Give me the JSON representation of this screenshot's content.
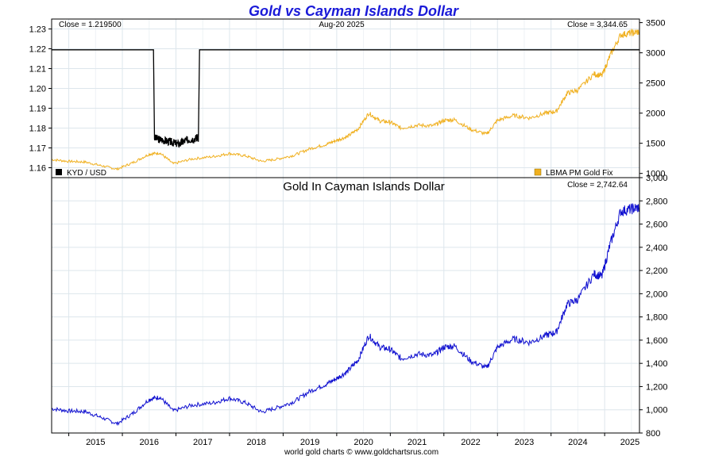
{
  "header": {
    "title": "Gold vs Cayman Islands Dollar",
    "date": "Aug-20  2025",
    "footer": "world gold charts © www.goldchartsrus.com"
  },
  "colors": {
    "title": "#1a1ad8",
    "gold": "#f0b020",
    "kyd": "#000000",
    "lower_series": "#1010d0",
    "grid": "#dde6ec"
  },
  "chart_data": [
    {
      "type": "line",
      "panel": "upper",
      "title": "Gold vs Cayman Islands Dollar",
      "x_ticks": [
        "2015",
        "2016",
        "2017",
        "2018",
        "2019",
        "2020",
        "2021",
        "2022",
        "2023",
        "2024",
        "2025"
      ],
      "xlim": [
        2014.68,
        2025.65
      ],
      "left_axis": {
        "ylim": [
          1.155,
          1.235
        ],
        "ticks": [
          "1.16",
          "1.17",
          "1.18",
          "1.19",
          "1.20",
          "1.21",
          "1.22",
          "1.23"
        ]
      },
      "right_axis": {
        "ylim": [
          930,
          3560
        ],
        "ticks": [
          "1000",
          "1500",
          "2000",
          "2500",
          "3000",
          "3500"
        ]
      },
      "grid": true,
      "close_left": "Close = 1.219500",
      "close_right": "Close = 3,344.65",
      "series": [
        {
          "name": "KYD / USD",
          "axis": "left",
          "color": "#000000",
          "x": [
            2014.68,
            2016.58,
            2016.6,
            2016.75,
            2016.9,
            2017.05,
            2017.2,
            2017.38,
            2017.42,
            2017.44,
            2025.65
          ],
          "y": [
            1.2195,
            1.2195,
            1.175,
            1.174,
            1.173,
            1.172,
            1.174,
            1.175,
            1.175,
            1.2195,
            1.2195
          ]
        },
        {
          "name": "LBMA PM Gold Fix",
          "axis": "right",
          "color": "#f0b020",
          "x": [
            2014.68,
            2015.0,
            2015.3,
            2015.6,
            2015.9,
            2016.2,
            2016.5,
            2016.7,
            2016.95,
            2017.3,
            2017.7,
            2018.0,
            2018.3,
            2018.6,
            2018.9,
            2019.2,
            2019.5,
            2019.8,
            2020.0,
            2020.2,
            2020.4,
            2020.6,
            2020.8,
            2021.0,
            2021.2,
            2021.5,
            2021.8,
            2022.0,
            2022.2,
            2022.5,
            2022.8,
            2023.0,
            2023.3,
            2023.6,
            2023.9,
            2024.1,
            2024.3,
            2024.5,
            2024.8,
            2024.95,
            2025.1,
            2025.3,
            2025.5,
            2025.65
          ],
          "y": [
            1230,
            1200,
            1190,
            1130,
            1070,
            1180,
            1320,
            1340,
            1160,
            1240,
            1280,
            1330,
            1290,
            1200,
            1240,
            1300,
            1410,
            1480,
            1550,
            1610,
            1740,
            2000,
            1870,
            1850,
            1750,
            1800,
            1790,
            1880,
            1890,
            1730,
            1650,
            1880,
            1960,
            1920,
            2000,
            2030,
            2330,
            2380,
            2650,
            2620,
            2950,
            3300,
            3330,
            3345
          ]
        }
      ],
      "legend": [
        {
          "label": "KYD / USD",
          "color": "#000000",
          "position": "bottom-left"
        },
        {
          "label": "LBMA PM Gold Fix",
          "color": "#f0b020",
          "position": "bottom-right"
        }
      ]
    },
    {
      "type": "line",
      "panel": "lower",
      "title": "Gold In Cayman Islands Dollar",
      "x_ticks": [
        "2015",
        "2016",
        "2017",
        "2018",
        "2019",
        "2020",
        "2021",
        "2022",
        "2023",
        "2024",
        "2025"
      ],
      "xlim": [
        2014.68,
        2025.65
      ],
      "right_axis": {
        "ylim": [
          800,
          3000
        ],
        "ticks": [
          "800",
          "1,000",
          "1,200",
          "1,400",
          "1,600",
          "1,800",
          "2,000",
          "2,200",
          "2,400",
          "2,600",
          "2,800",
          "3,000"
        ]
      },
      "grid": true,
      "close_right": "Close = 2,742.64",
      "series": [
        {
          "color": "#1010d0",
          "x": [
            2014.68,
            2015.0,
            2015.3,
            2015.6,
            2015.9,
            2016.2,
            2016.5,
            2016.7,
            2016.95,
            2017.3,
            2017.7,
            2018.0,
            2018.3,
            2018.6,
            2018.9,
            2019.2,
            2019.5,
            2019.8,
            2020.0,
            2020.2,
            2020.4,
            2020.6,
            2020.8,
            2021.0,
            2021.2,
            2021.5,
            2021.8,
            2022.0,
            2022.2,
            2022.5,
            2022.8,
            2023.0,
            2023.3,
            2023.6,
            2023.9,
            2024.1,
            2024.3,
            2024.5,
            2024.8,
            2024.95,
            2025.1,
            2025.3,
            2025.5,
            2025.65
          ],
          "y": [
            1010,
            990,
            985,
            935,
            880,
            970,
            1090,
            1110,
            990,
            1040,
            1060,
            1100,
            1060,
            980,
            1020,
            1070,
            1160,
            1220,
            1270,
            1330,
            1430,
            1640,
            1540,
            1520,
            1440,
            1480,
            1470,
            1540,
            1550,
            1420,
            1360,
            1540,
            1610,
            1580,
            1640,
            1670,
            1910,
            1950,
            2170,
            2150,
            2420,
            2710,
            2730,
            2743
          ]
        }
      ]
    }
  ]
}
